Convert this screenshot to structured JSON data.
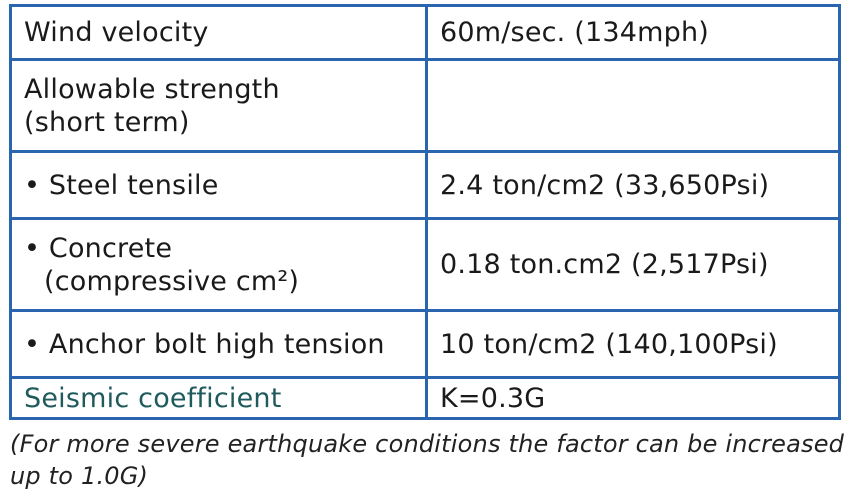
{
  "table": {
    "rows": [
      {
        "label": "Wind velocity",
        "value": "60m/sec. (134mph)"
      },
      {
        "label": "Allowable strength",
        "label_cont": "(short term)",
        "value": ""
      },
      {
        "label": "• Steel tensile",
        "value": "2.4 ton/cm2 (33,650Psi)"
      },
      {
        "label": "• Concrete",
        "label_cont": "(compressive cm²)",
        "value": "0.18 ton.cm2 (2,517Psi)"
      },
      {
        "label": "• Anchor bolt high tension",
        "value": "10 ton/cm2 (140,100Psi)"
      },
      {
        "label": "Seismic coefficient",
        "value": "K=0.3G"
      }
    ]
  },
  "note": "(For more severe earthquake conditions the factor can be increased up to 1.0G)",
  "colors": {
    "border": "#2a66b0",
    "seismic_label": "#1f5a5c"
  }
}
